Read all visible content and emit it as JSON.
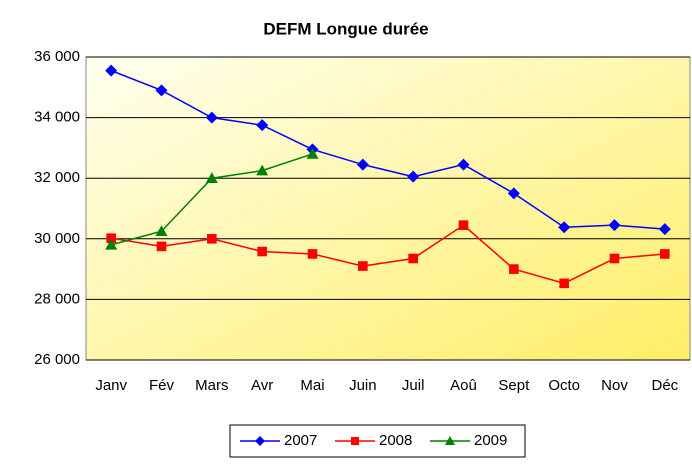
{
  "chart_data": {
    "type": "line",
    "title": "DEFM Longue durée",
    "categories": [
      "Janv",
      "Fév",
      "Mars",
      "Avr",
      "Mai",
      "Juin",
      "Juil",
      "Aoû",
      "Sept",
      "Octo",
      "Nov",
      "Déc"
    ],
    "series": [
      {
        "name": "2007",
        "color": "#0000ff",
        "marker": "diamond",
        "values": [
          35550,
          34900,
          34000,
          33750,
          32950,
          32450,
          32050,
          32450,
          31500,
          30380,
          30450,
          30320
        ]
      },
      {
        "name": "2008",
        "color": "#ff0000",
        "marker": "square",
        "values": [
          30020,
          29750,
          30000,
          29580,
          29500,
          29100,
          29350,
          30450,
          29000,
          28530,
          29350,
          29500
        ]
      },
      {
        "name": "2009",
        "color": "#008000",
        "marker": "triangle",
        "values": [
          29800,
          30250,
          32000,
          32250,
          32800,
          null,
          null,
          null,
          null,
          null,
          null,
          null
        ]
      }
    ],
    "ylim": [
      26000,
      36000
    ],
    "yticks": [
      {
        "value": 26000,
        "label": "26 000"
      },
      {
        "value": 28000,
        "label": "28 000"
      },
      {
        "value": 30000,
        "label": "30 000"
      },
      {
        "value": 32000,
        "label": "32 000"
      },
      {
        "value": 34000,
        "label": "34 000"
      },
      {
        "value": 36000,
        "label": "36 000"
      }
    ],
    "grid": true,
    "legend": "bottom"
  }
}
